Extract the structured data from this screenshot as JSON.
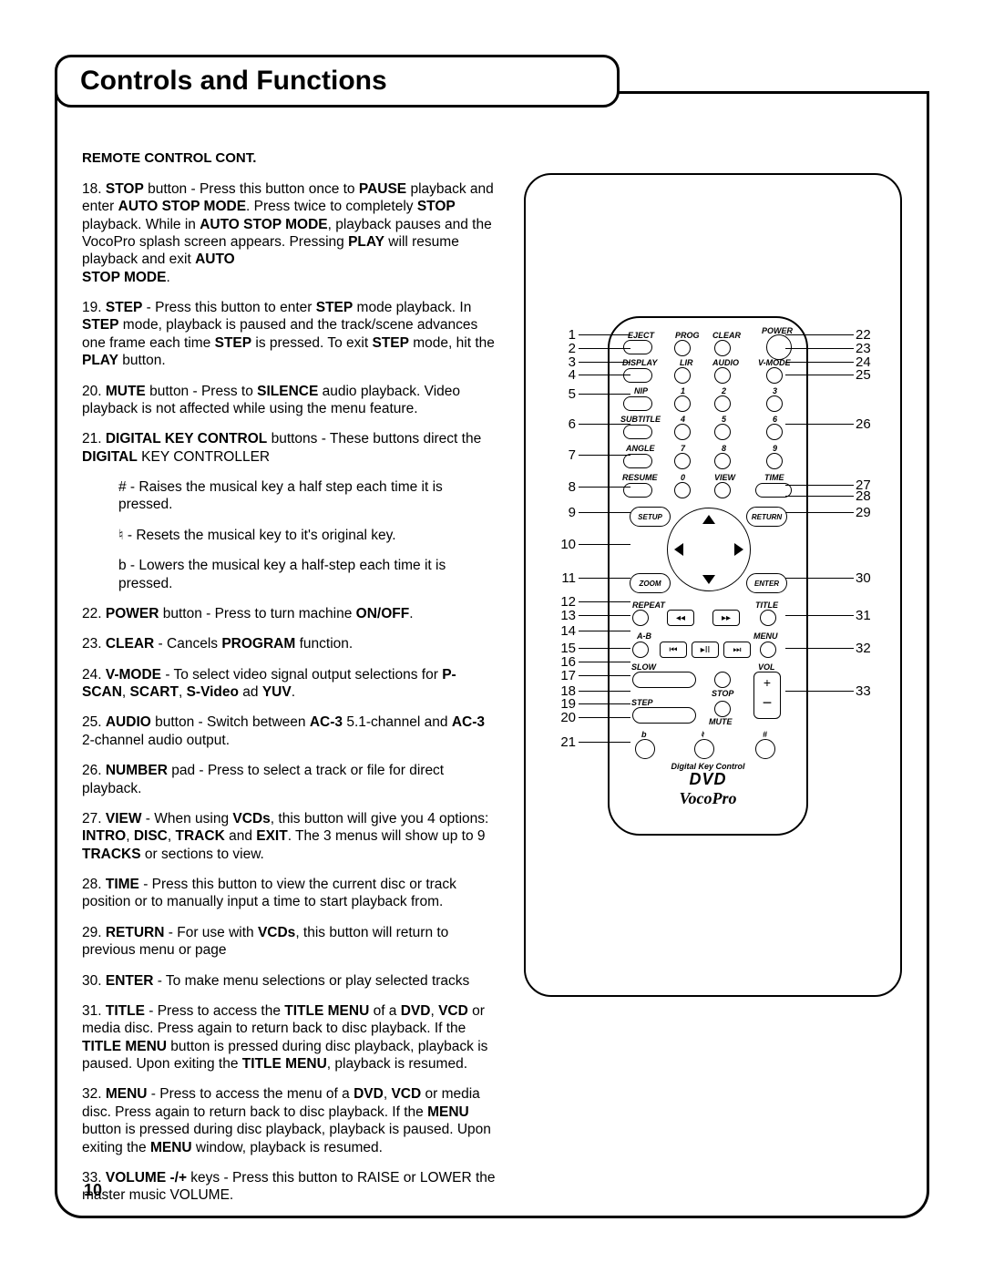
{
  "title": "Controls and Functions",
  "section_header": "REMOTE CONTROL  CONT.",
  "page_number": "10",
  "items": {
    "i18": {
      "n": "18.",
      "parts": [
        {
          "b": true,
          "t": "STOP"
        },
        {
          "t": " button - Press this button once to "
        },
        {
          "b": true,
          "t": "PAUSE"
        },
        {
          "t": " playback and enter "
        },
        {
          "b": true,
          "t": "AUTO STOP MODE"
        },
        {
          "t": ". Press twice to completely "
        },
        {
          "b": true,
          "t": "STOP"
        },
        {
          "t": " playback. While in "
        },
        {
          "b": true,
          "t": "AUTO STOP MODE"
        },
        {
          "t": ", playback pauses and the VocoPro splash screen appears. Pressing "
        },
        {
          "b": true,
          "t": "PLAY"
        },
        {
          "t": " will resume playback and exit "
        },
        {
          "b": true,
          "t": "AUTO"
        }
      ],
      "trailer_bold": "STOP MODE",
      "trailer": "."
    },
    "i19": {
      "n": "19.",
      "parts": [
        {
          "b": true,
          "t": "STEP"
        },
        {
          "t": " - Press this button to enter "
        },
        {
          "b": true,
          "t": "STEP"
        },
        {
          "t": " mode playback. In "
        },
        {
          "b": true,
          "t": "STEP"
        },
        {
          "t": " mode, playback is paused and the track/scene advances one frame each time "
        },
        {
          "b": true,
          "t": "STEP"
        },
        {
          "t": " is pressed. To exit "
        },
        {
          "b": true,
          "t": "STEP"
        },
        {
          "t": " mode, hit the "
        },
        {
          "b": true,
          "t": "PLAY"
        },
        {
          "t": " button."
        }
      ]
    },
    "i20": {
      "n": "20.",
      "parts": [
        {
          "b": true,
          "t": "MUTE"
        },
        {
          "t": " button - Press to "
        },
        {
          "b": true,
          "t": "SILENCE"
        },
        {
          "t": " audio playback. Video playback is not affected while using the menu feature."
        }
      ]
    },
    "i21": {
      "n": "21.",
      "parts": [
        {
          "b": true,
          "t": "DIGITAL KEY CONTROL"
        },
        {
          "t": " buttons - These buttons direct the "
        },
        {
          "b": true,
          "t": "DIGITAL"
        },
        {
          "t": " KEY CONTROLLER"
        }
      ],
      "subs": [
        {
          "sym": "#",
          "t": " - Raises the musical key a half step each time it is pressed."
        },
        {
          "sym": "♮",
          "t": " - Resets the musical key to it's original key."
        },
        {
          "sym": "b",
          "t": " - Lowers the musical key a half-step each time it is pressed."
        }
      ]
    },
    "i22": {
      "n": "22.",
      "parts": [
        {
          "b": true,
          "t": "POWER"
        },
        {
          "t": " button - Press to turn machine "
        },
        {
          "b": true,
          "t": "ON/OFF"
        },
        {
          "t": "."
        }
      ]
    },
    "i23": {
      "n": "23.",
      "parts": [
        {
          "b": true,
          "t": "CLEAR"
        },
        {
          "t": " - Cancels "
        },
        {
          "b": true,
          "t": "PROGRAM"
        },
        {
          "t": " function."
        }
      ]
    },
    "i24": {
      "n": "24.",
      "parts": [
        {
          "b": true,
          "t": "V-MODE"
        },
        {
          "t": " - To select video signal output selections for "
        },
        {
          "b": true,
          "t": "P-SCAN"
        },
        {
          "t": ", "
        },
        {
          "b": true,
          "t": "SCART"
        },
        {
          "t": ", "
        },
        {
          "b": true,
          "t": "S-Video"
        },
        {
          "t": " ad "
        },
        {
          "b": true,
          "t": "YUV"
        },
        {
          "t": "."
        }
      ]
    },
    "i25": {
      "n": "25.",
      "parts": [
        {
          "b": true,
          "t": "AUDIO"
        },
        {
          "t": " button - Switch between "
        },
        {
          "b": true,
          "t": "AC-3"
        },
        {
          "t": " 5.1-channel and "
        },
        {
          "b": true,
          "t": "AC-3"
        },
        {
          "t": " 2-channel audio output."
        }
      ]
    },
    "i26": {
      "n": "26.",
      "parts": [
        {
          "b": true,
          "t": "NUMBER"
        },
        {
          "t": " pad - Press to select a track or file for direct playback."
        }
      ]
    },
    "i27": {
      "n": "27.",
      "parts": [
        {
          "b": true,
          "t": "VIEW"
        },
        {
          "t": " - When using "
        },
        {
          "b": true,
          "t": "VCDs"
        },
        {
          "t": ", this button will give you 4 options: "
        },
        {
          "b": true,
          "t": "INTRO"
        },
        {
          "t": ", "
        },
        {
          "b": true,
          "t": "DISC"
        },
        {
          "t": ", "
        },
        {
          "b": true,
          "t": "TRACK"
        },
        {
          "t": " and "
        },
        {
          "b": true,
          "t": "EXIT"
        },
        {
          "t": ". The 3 menus will show up to 9 "
        },
        {
          "b": true,
          "t": "TRACKS"
        },
        {
          "t": " or sections to view."
        }
      ]
    },
    "i28": {
      "n": "28.",
      "parts": [
        {
          "b": true,
          "t": "TIME"
        },
        {
          "t": " - Press this button to view the current disc or track position or to manually input a time to start playback from."
        }
      ]
    },
    "i29": {
      "n": "29.",
      "parts": [
        {
          "b": true,
          "t": "RETURN"
        },
        {
          "t": " - For use with "
        },
        {
          "b": true,
          "t": "VCDs"
        },
        {
          "t": ", this button will return to previous menu or page"
        }
      ]
    },
    "i30": {
      "n": "30.",
      "parts": [
        {
          "b": true,
          "t": "ENTER"
        },
        {
          "t": " - To make menu selections or play selected tracks"
        }
      ]
    },
    "i31": {
      "n": "31.",
      "parts": [
        {
          "b": true,
          "t": "TITLE"
        },
        {
          "t": " - Press to access the "
        },
        {
          "b": true,
          "t": "TITLE MENU"
        },
        {
          "t": " of a "
        },
        {
          "b": true,
          "t": "DVD"
        },
        {
          "t": ", "
        },
        {
          "b": true,
          "t": "VCD"
        },
        {
          "t": " or media disc. Press again to return back to disc playback. If the "
        },
        {
          "b": true,
          "t": "TITLE MENU"
        },
        {
          "t": " button is pressed during disc playback, playback is paused. Upon exiting the "
        },
        {
          "b": true,
          "t": "TITLE MENU"
        },
        {
          "t": ", playback is resumed."
        }
      ]
    },
    "i32": {
      "n": "32.",
      "parts": [
        {
          "b": true,
          "t": "MENU"
        },
        {
          "t": " - Press to access the menu of a "
        },
        {
          "b": true,
          "t": "DVD"
        },
        {
          "t": ", "
        },
        {
          "b": true,
          "t": "VCD"
        },
        {
          "t": " or media disc. Press again to return back to disc playback. If the "
        },
        {
          "b": true,
          "t": "MENU"
        },
        {
          "t": " button is pressed during disc playback, playback is paused. Upon exiting the "
        },
        {
          "b": true,
          "t": "MENU"
        },
        {
          "t": " window, playback is resumed."
        }
      ]
    },
    "i33": {
      "n": "33.",
      "parts": [
        {
          "b": true,
          "t": "VOLUME -/+"
        },
        {
          "t": " keys - Press this button to RAISE or LOWER the master music VOLUME."
        }
      ]
    }
  },
  "remote": {
    "labels": {
      "power": "POWER",
      "eject": "EJECT",
      "prog": "PROG",
      "clear": "CLEAR",
      "display": "DISPLAY",
      "lir": "LIR",
      "audio": "AUDIO",
      "vmode": "V-MODE",
      "nip": "NIP",
      "subtitle": "SUBTITLE",
      "angle": "ANGLE",
      "resume": "RESUME",
      "view": "VIEW",
      "time": "TIME",
      "setup": "SETUP",
      "return": "RETURN",
      "zoom": "ZOOM",
      "enter": "ENTER",
      "repeat": "REPEAT",
      "title": "TITLE",
      "ab": "A-B",
      "menu": "MENU",
      "slow": "SLOW",
      "vol": "VOL",
      "stop": "STOP",
      "step": "STEP",
      "mute": "MUTE",
      "dkc": "Digital Key Control",
      "n1": "1",
      "n2": "2",
      "n3": "3",
      "n4": "4",
      "n5": "5",
      "n6": "6",
      "n7": "7",
      "n8": "8",
      "n9": "9",
      "n0": "0",
      "b": "b",
      "nat": "♮",
      "sharp": "#"
    },
    "brand_dvd": "DVD",
    "brand_voco": "VocoPro",
    "left_nums": [
      "1",
      "2",
      "3",
      "4",
      "5",
      "6",
      "7",
      "8",
      "9",
      "10",
      "11",
      "12",
      "13",
      "14",
      "15",
      "16",
      "17",
      "18",
      "19",
      "20",
      "21"
    ],
    "right_nums": [
      "22",
      "23",
      "24",
      "25",
      "26",
      "27",
      "28",
      "29",
      "30",
      "31",
      "32",
      "33"
    ],
    "left_y": [
      175,
      190,
      205,
      219,
      240,
      273,
      307,
      342,
      370,
      405,
      442,
      468,
      483,
      500,
      519,
      534,
      549,
      566,
      580,
      595,
      622
    ],
    "right_y": [
      175,
      190,
      205,
      219,
      273,
      340,
      352,
      370,
      442,
      483,
      519,
      566
    ]
  }
}
